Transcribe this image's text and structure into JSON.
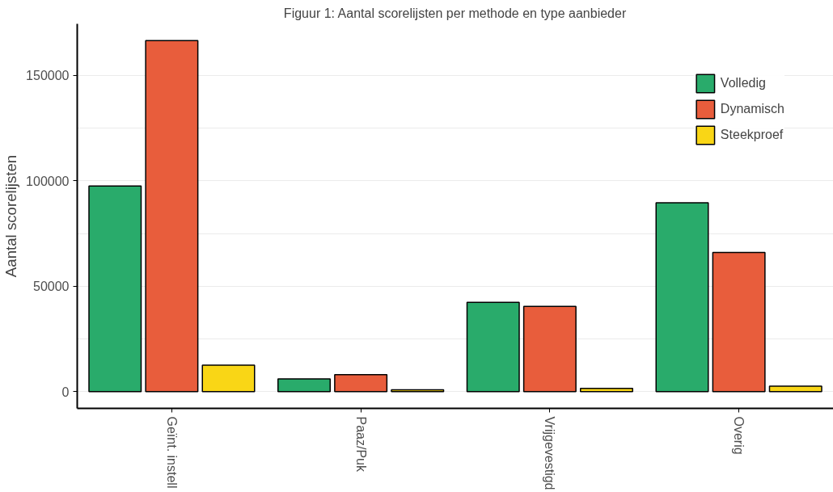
{
  "chart_data": {
    "type": "bar",
    "title": "Figuur 1: Aantal scorelijsten per methode en type aanbieder",
    "ylabel": "Aantal scorelijsten",
    "categories": [
      "Geïnt. instell",
      "Paaz/Puk",
      "Vrijgevestigd",
      "Overig"
    ],
    "series": [
      {
        "name": "Volledig",
        "color": "#29ab6b",
        "values": [
          97500,
          6000,
          42300,
          89600
        ]
      },
      {
        "name": "Dynamisch",
        "color": "#e85d3c",
        "values": [
          166500,
          8000,
          40400,
          66000
        ]
      },
      {
        "name": "Steekproef",
        "color": "#f9d616",
        "values": [
          12500,
          800,
          1500,
          2500
        ]
      }
    ],
    "ylim": [
      -8000,
      174500
    ],
    "yticks": [
      0,
      50000,
      100000,
      150000
    ],
    "grid": "y",
    "legend": "top right"
  }
}
